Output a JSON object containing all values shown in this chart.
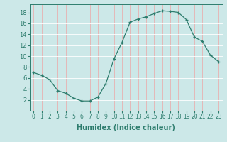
{
  "x": [
    0,
    1,
    2,
    3,
    4,
    5,
    6,
    7,
    8,
    9,
    10,
    11,
    12,
    13,
    14,
    15,
    16,
    17,
    18,
    19,
    20,
    21,
    22,
    23
  ],
  "y": [
    7.0,
    6.5,
    5.7,
    3.7,
    3.2,
    2.3,
    1.8,
    1.8,
    2.5,
    5.0,
    9.5,
    12.5,
    16.2,
    16.8,
    17.2,
    17.8,
    18.3,
    18.2,
    18.0,
    16.7,
    13.5,
    12.7,
    10.2,
    9.0
  ],
  "xlim": [
    -0.5,
    23.5
  ],
  "ylim": [
    0,
    19.5
  ],
  "xticks": [
    0,
    1,
    2,
    3,
    4,
    5,
    6,
    7,
    8,
    9,
    10,
    11,
    12,
    13,
    14,
    15,
    16,
    17,
    18,
    19,
    20,
    21,
    22,
    23
  ],
  "yticks": [
    2,
    4,
    6,
    8,
    10,
    12,
    14,
    16,
    18
  ],
  "xlabel": "Humidex (Indice chaleur)",
  "line_color": "#2e7d6e",
  "marker": "+",
  "background_color": "#cce8e8",
  "grid_color": "#e8b0b0",
  "tick_color": "#2e7d6e",
  "label_color": "#2e7d6e",
  "xlabel_fontsize": 7,
  "ytick_fontsize": 6,
  "xtick_fontsize": 5.5
}
